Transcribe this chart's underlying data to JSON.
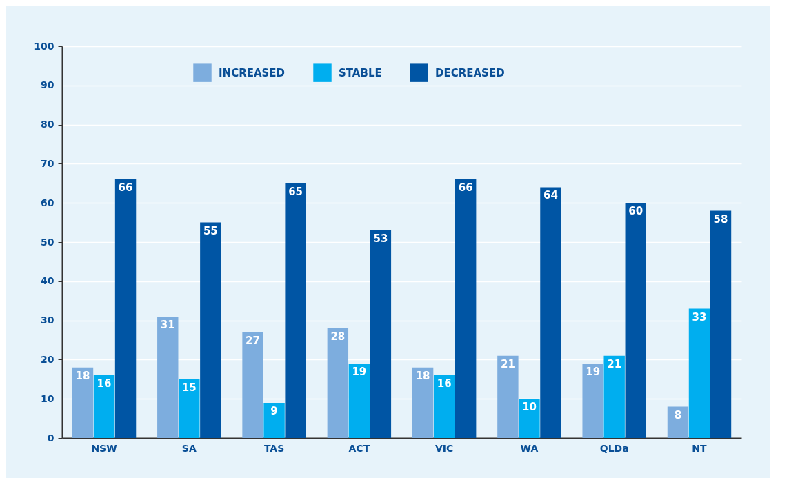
{
  "chart_data": {
    "type": "bar",
    "categories": [
      "NSW",
      "SA",
      "TAS",
      "ACT",
      "VIC",
      "WA",
      "QLDa",
      "NT"
    ],
    "series": [
      {
        "name": "INCREASED",
        "color": "#7dadde",
        "values": [
          18,
          31,
          27,
          28,
          18,
          21,
          19,
          8
        ]
      },
      {
        "name": "STABLE",
        "color": "#00aeef",
        "values": [
          16,
          15,
          9,
          19,
          16,
          10,
          21,
          33
        ]
      },
      {
        "name": "DECREASED",
        "color": "#0055a4",
        "values": [
          66,
          55,
          65,
          53,
          66,
          64,
          60,
          58
        ]
      }
    ],
    "ylim": [
      0,
      100
    ],
    "yticks": [
      0,
      10,
      20,
      30,
      40,
      50,
      60,
      70,
      80,
      90,
      100
    ],
    "grid": "y",
    "legend": "top left",
    "data_labels": true
  }
}
